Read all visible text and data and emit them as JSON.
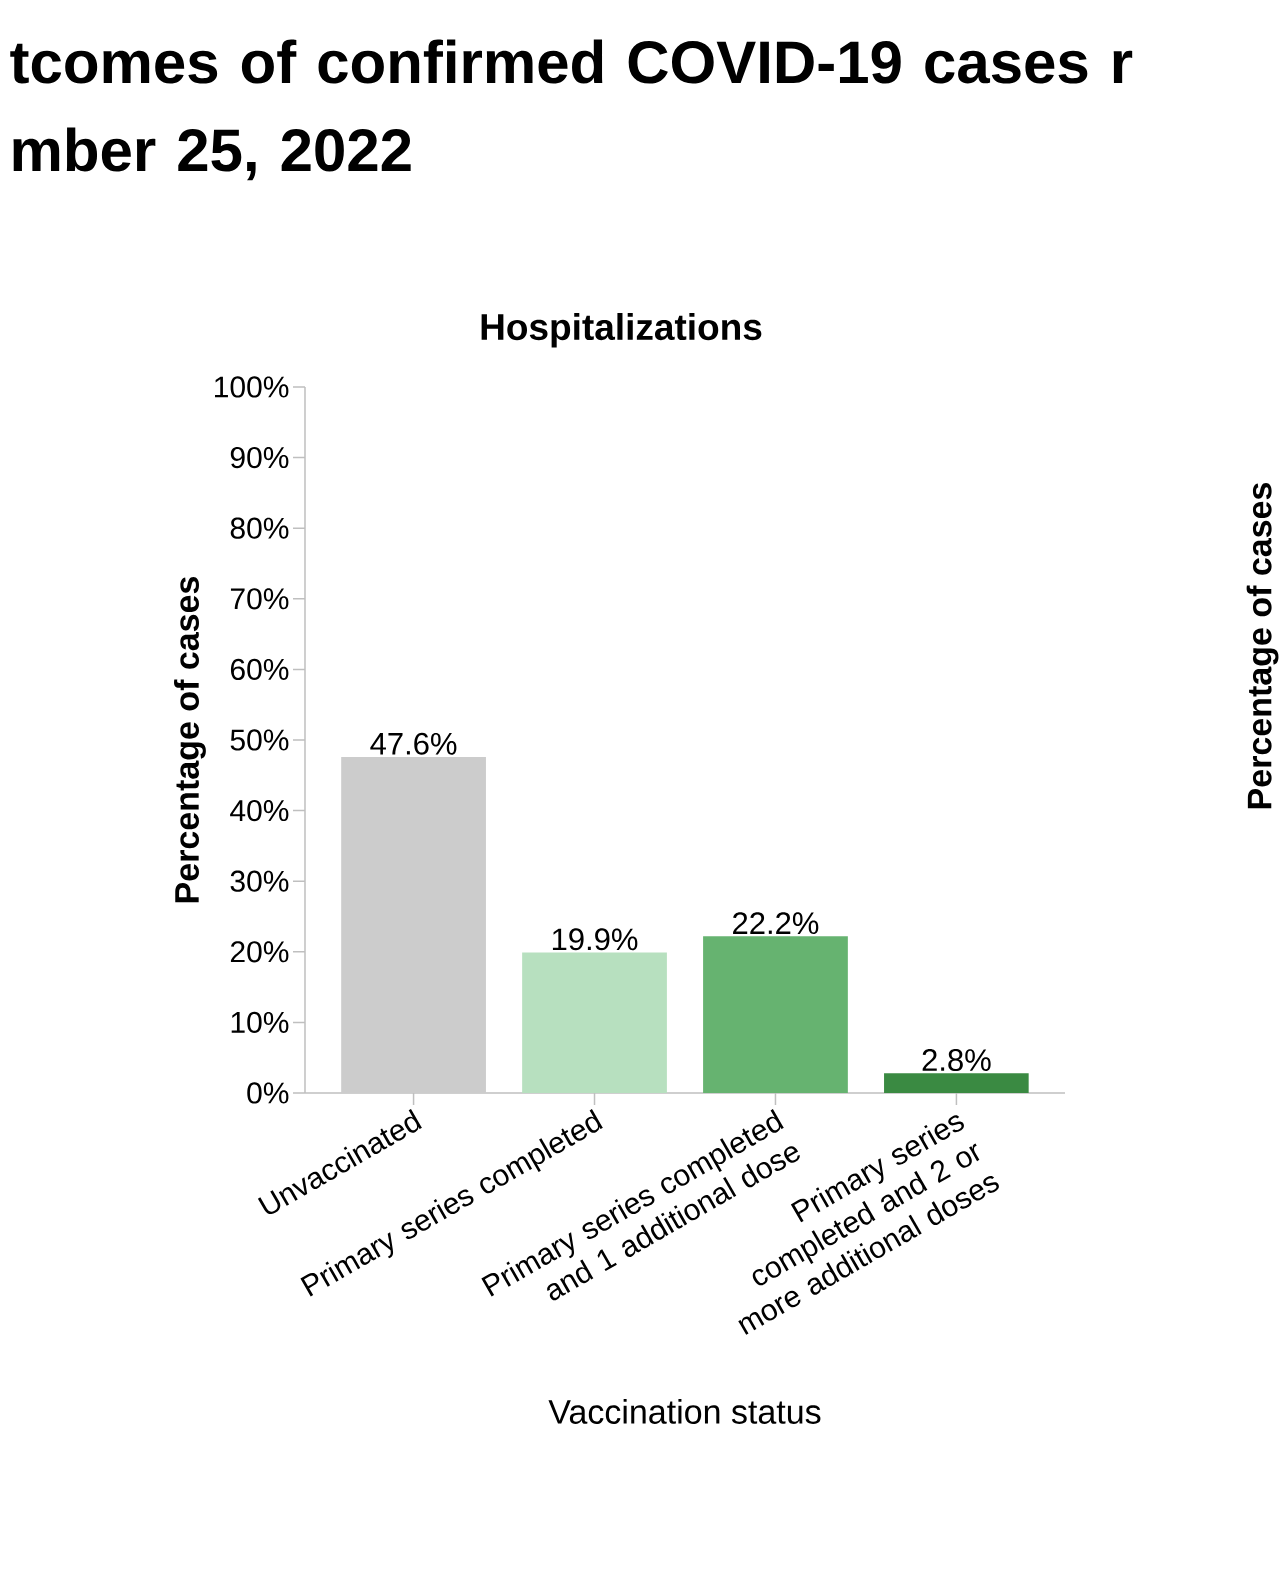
{
  "chart_data": {
    "type": "bar",
    "title": "tcomes of confirmed COVID-19 cases r mber 25, 2022",
    "subtitle": "Hospitalizations",
    "xlabel": "Vaccination status",
    "ylabel": "Percentage of cases",
    "annotations": [
      "Percentage of cases"
    ],
    "categories": [
      "Unvaccinated",
      "Primary series completed",
      "Primary series completed and 1 additional dose",
      "Primary series completed and 2 or more additional doses"
    ],
    "values": [
      47.6,
      19.9,
      22.2,
      2.8
    ],
    "value_labels": [
      "47.6%",
      "19.9%",
      "22.2%",
      "2.8%"
    ],
    "colors": [
      "#cccccc",
      "#b7e0bf",
      "#66b370",
      "#3a8a42"
    ],
    "ylim": [
      0,
      100
    ],
    "yticks": [
      {
        "value": 0,
        "label": "0%"
      },
      {
        "value": 10,
        "label": "10%"
      },
      {
        "value": 20,
        "label": "20%"
      },
      {
        "value": 30,
        "label": "30%"
      },
      {
        "value": 40,
        "label": "40%"
      },
      {
        "value": 50,
        "label": "50%"
      },
      {
        "value": 60,
        "label": "60%"
      },
      {
        "value": 70,
        "label": "70%"
      },
      {
        "value": 80,
        "label": "80%"
      },
      {
        "value": 90,
        "label": "90%"
      },
      {
        "value": 100,
        "label": "100%"
      }
    ],
    "grid": false
  }
}
